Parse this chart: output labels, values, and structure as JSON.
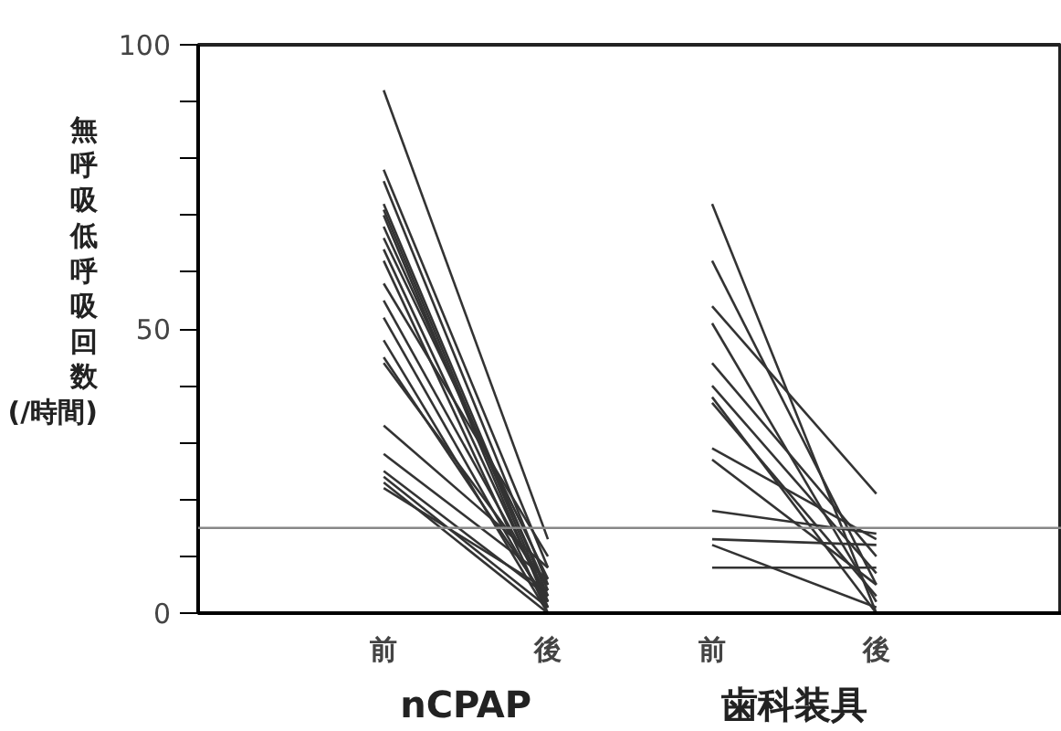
{
  "chart_data": {
    "type": "line",
    "ylabel": "無呼吸低呼吸回数(/時間)",
    "categories": [
      "前",
      "後",
      "前",
      "後"
    ],
    "annotations": [
      "nCPAP",
      "歯科装具"
    ],
    "ylim": [
      0,
      100
    ],
    "yticks": [
      0,
      {
        "value": 10,
        "label": null
      },
      {
        "value": 20,
        "label": null
      },
      {
        "value": 30,
        "label": null
      },
      {
        "value": 40,
        "label": null
      },
      50,
      {
        "value": 60,
        "label": null
      },
      {
        "value": 70,
        "label": null
      },
      {
        "value": 80,
        "label": null
      },
      {
        "value": 90,
        "label": null
      },
      100
    ],
    "ref_lines": [
      {
        "axis": "y",
        "value": 15,
        "color": "#888888"
      }
    ],
    "grid": false,
    "marker": "none",
    "line_style": "solid",
    "series": [
      {
        "color": "#333333",
        "values": [
          92,
          13,
          null,
          null
        ]
      },
      {
        "color": "#333333",
        "values": [
          78,
          8,
          null,
          null
        ]
      },
      {
        "color": "#333333",
        "values": [
          76,
          5,
          null,
          null
        ]
      },
      {
        "color": "#333333",
        "values": [
          72,
          3,
          null,
          null
        ]
      },
      {
        "color": "#333333",
        "values": [
          71,
          2,
          null,
          null
        ]
      },
      {
        "color": "#333333",
        "values": [
          70,
          1,
          null,
          null
        ]
      },
      {
        "color": "#333333",
        "values": [
          68,
          4,
          null,
          null
        ]
      },
      {
        "color": "#333333",
        "values": [
          66,
          6,
          null,
          null
        ]
      },
      {
        "color": "#333333",
        "values": [
          64,
          2,
          null,
          null
        ]
      },
      {
        "color": "#333333",
        "values": [
          62,
          0,
          null,
          null
        ]
      },
      {
        "color": "#333333",
        "values": [
          58,
          10,
          null,
          null
        ]
      },
      {
        "color": "#333333",
        "values": [
          55,
          3,
          null,
          null
        ]
      },
      {
        "color": "#333333",
        "values": [
          52,
          1,
          null,
          null
        ]
      },
      {
        "color": "#333333",
        "values": [
          48,
          0,
          null,
          null
        ]
      },
      {
        "color": "#333333",
        "values": [
          45,
          2,
          null,
          null
        ]
      },
      {
        "color": "#333333",
        "values": [
          44,
          5,
          null,
          null
        ]
      },
      {
        "color": "#333333",
        "values": [
          33,
          8,
          null,
          null
        ]
      },
      {
        "color": "#333333",
        "values": [
          28,
          6,
          null,
          null
        ]
      },
      {
        "color": "#333333",
        "values": [
          25,
          3,
          null,
          null
        ]
      },
      {
        "color": "#333333",
        "values": [
          24,
          1,
          null,
          null
        ]
      },
      {
        "color": "#333333",
        "values": [
          23,
          0,
          null,
          null
        ]
      },
      {
        "color": "#333333",
        "values": [
          22,
          4,
          null,
          null
        ]
      },
      {
        "color": "#333333",
        "values": [
          null,
          null,
          72,
          0
        ]
      },
      {
        "color": "#333333",
        "values": [
          null,
          null,
          62,
          5
        ]
      },
      {
        "color": "#333333",
        "values": [
          null,
          null,
          54,
          21
        ]
      },
      {
        "color": "#333333",
        "values": [
          null,
          null,
          51,
          2
        ]
      },
      {
        "color": "#333333",
        "values": [
          null,
          null,
          44,
          10
        ]
      },
      {
        "color": "#333333",
        "values": [
          null,
          null,
          40,
          7
        ]
      },
      {
        "color": "#333333",
        "values": [
          null,
          null,
          38,
          0
        ]
      },
      {
        "color": "#333333",
        "values": [
          null,
          null,
          37,
          3
        ]
      },
      {
        "color": "#333333",
        "values": [
          null,
          null,
          29,
          13
        ]
      },
      {
        "color": "#333333",
        "values": [
          null,
          null,
          27,
          5
        ]
      },
      {
        "color": "#333333",
        "values": [
          null,
          null,
          18,
          14
        ]
      },
      {
        "color": "#333333",
        "values": [
          null,
          null,
          13,
          12
        ]
      },
      {
        "color": "#333333",
        "values": [
          null,
          null,
          12,
          1
        ]
      },
      {
        "color": "#333333",
        "values": [
          null,
          null,
          8,
          8
        ]
      }
    ]
  }
}
